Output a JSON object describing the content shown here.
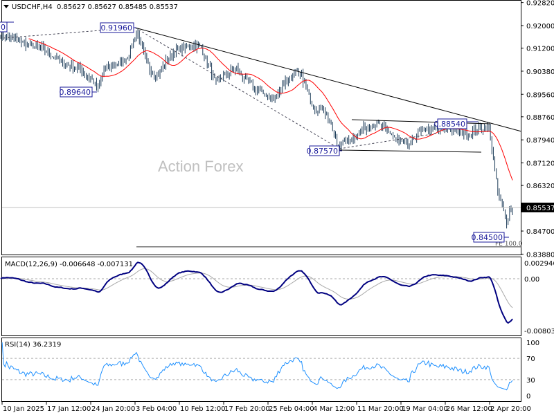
{
  "header": {
    "symbol": "USDCHF,H4",
    "ohlc": "0.85627 0.85627 0.85485 0.85537"
  },
  "watermark": "Action Forex",
  "chart_data": [
    {
      "type": "line",
      "title": "USDCHF,H4",
      "series_type": "ohlc-bars",
      "ylim": [
        0.8388,
        0.9282
      ],
      "yticks": [
        "0.92820",
        "0.92000",
        "0.91200",
        "0.90380",
        "0.89560",
        "0.88760",
        "0.87940",
        "0.87120",
        "0.86320",
        "0.84700",
        "0.83880"
      ],
      "current_price": "0.85537",
      "close_knots": [
        [
          2,
          0.9168
        ],
        [
          9,
          0.9156
        ],
        [
          19,
          0.9131
        ],
        [
          28,
          0.9119
        ],
        [
          38,
          0.9082
        ],
        [
          47,
          0.9057
        ],
        [
          54,
          0.9045
        ],
        [
          59,
          0.9021
        ],
        [
          63,
          0.9001
        ],
        [
          66,
          0.8971
        ],
        [
          70,
          0.9045
        ],
        [
          75,
          0.9057
        ],
        [
          82,
          0.907
        ],
        [
          87,
          0.9094
        ],
        [
          92,
          0.918
        ],
        [
          96,
          0.9119
        ],
        [
          101,
          0.9045
        ],
        [
          106,
          0.9021
        ],
        [
          110,
          0.9057
        ],
        [
          117,
          0.9107
        ],
        [
          124,
          0.9119
        ],
        [
          131,
          0.9131
        ],
        [
          136,
          0.9119
        ],
        [
          141,
          0.9057
        ],
        [
          146,
          0.8996
        ],
        [
          150,
          0.9021
        ],
        [
          160,
          0.9045
        ],
        [
          164,
          0.9021
        ],
        [
          171,
          0.8984
        ],
        [
          178,
          0.8959
        ],
        [
          185,
          0.8935
        ],
        [
          192,
          0.8996
        ],
        [
          200,
          0.9033
        ],
        [
          204,
          0.9021
        ],
        [
          209,
          0.8947
        ],
        [
          214,
          0.8898
        ],
        [
          218,
          0.891
        ],
        [
          223,
          0.8861
        ],
        [
          228,
          0.8775
        ],
        [
          232,
          0.8787
        ],
        [
          239,
          0.88
        ],
        [
          246,
          0.8836
        ],
        [
          256,
          0.8849
        ],
        [
          263,
          0.8824
        ],
        [
          270,
          0.8787
        ],
        [
          277,
          0.8775
        ],
        [
          282,
          0.8812
        ],
        [
          289,
          0.8836
        ],
        [
          296,
          0.8829
        ],
        [
          303,
          0.8836
        ],
        [
          310,
          0.8824
        ],
        [
          317,
          0.8812
        ],
        [
          324,
          0.8836
        ],
        [
          331,
          0.8836
        ],
        [
          334,
          0.8726
        ],
        [
          337,
          0.8603
        ],
        [
          340,
          0.8554
        ],
        [
          343,
          0.8505
        ],
        [
          345,
          0.8541
        ],
        [
          347,
          0.8554
        ]
      ],
      "moving_average": {
        "period": 20,
        "color": "#ff0000"
      },
      "annotations": {
        "price_labels": [
          "0",
          "0.91960",
          "0.89640",
          "0.87570",
          "0.88540",
          "0.84500"
        ],
        "fe_label": "FE 100.0",
        "fe_level": 0.8414
      },
      "xticks": [
        "10 Jan 2025",
        "17 Jan 12:00",
        "24 Jan 20:00",
        "3 Feb 04:00",
        "10 Feb 12:00",
        "17 Feb 20:00",
        "25 Feb 04:00",
        "4 Mar 12:00",
        "11 Mar 20:00",
        "19 Mar 04:00",
        "26 Mar 12:00",
        "2 Apr 20:00"
      ]
    },
    {
      "type": "line",
      "title": "MACD(12,26,9) -0.006648 -0.007131",
      "ylim": [
        -0.008039,
        0.002946
      ],
      "yticks": [
        "0.002946",
        "0.00",
        "-0.008039"
      ],
      "colors": {
        "macd": "#000080",
        "signal": "#a9a9a9"
      }
    },
    {
      "type": "line",
      "title": "RSI(14) 36.2319",
      "ylim": [
        0,
        100
      ],
      "yticks": [
        "100",
        "70",
        "30",
        "0"
      ],
      "color": "#1e90ff"
    }
  ]
}
